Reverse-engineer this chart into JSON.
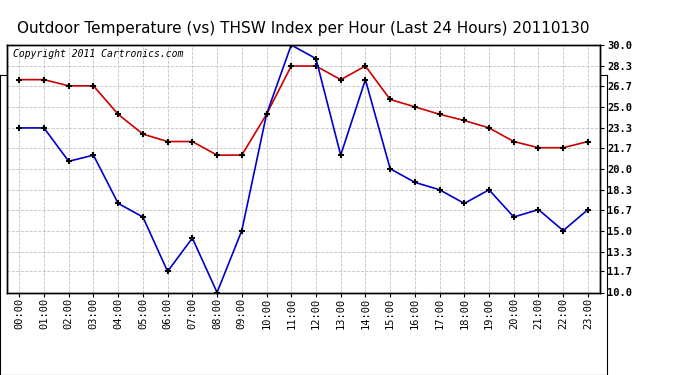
{
  "title": "Outdoor Temperature (vs) THSW Index per Hour (Last 24 Hours) 20110130",
  "copyright": "Copyright 2011 Cartronics.com",
  "hours": [
    "00:00",
    "01:00",
    "02:00",
    "03:00",
    "04:00",
    "05:00",
    "06:00",
    "07:00",
    "08:00",
    "09:00",
    "10:00",
    "11:00",
    "12:00",
    "13:00",
    "14:00",
    "15:00",
    "16:00",
    "17:00",
    "18:00",
    "19:00",
    "20:00",
    "21:00",
    "22:00",
    "23:00"
  ],
  "temp_red": [
    27.2,
    27.2,
    26.7,
    26.7,
    24.4,
    22.8,
    22.2,
    22.2,
    21.1,
    21.1,
    24.4,
    28.3,
    28.3,
    27.2,
    28.3,
    25.6,
    25.0,
    24.4,
    23.9,
    23.3,
    22.2,
    21.7,
    21.7,
    22.2
  ],
  "thsw_blue": [
    23.3,
    23.3,
    20.6,
    21.1,
    17.2,
    16.1,
    11.7,
    14.4,
    10.0,
    15.0,
    24.4,
    30.0,
    28.9,
    21.1,
    27.2,
    20.0,
    18.9,
    18.3,
    17.2,
    18.3,
    16.1,
    16.7,
    15.0,
    16.7
  ],
  "red_color": "#cc0000",
  "blue_color": "#0000cc",
  "bg_color": "#ffffff",
  "grid_color": "#bbbbbb",
  "ylim_min": 10.0,
  "ylim_max": 30.0,
  "yticks": [
    10.0,
    11.7,
    13.3,
    15.0,
    16.7,
    18.3,
    20.0,
    21.7,
    23.3,
    25.0,
    26.7,
    28.3,
    30.0
  ],
  "title_fontsize": 11,
  "copyright_fontsize": 7,
  "tick_fontsize": 7.5
}
